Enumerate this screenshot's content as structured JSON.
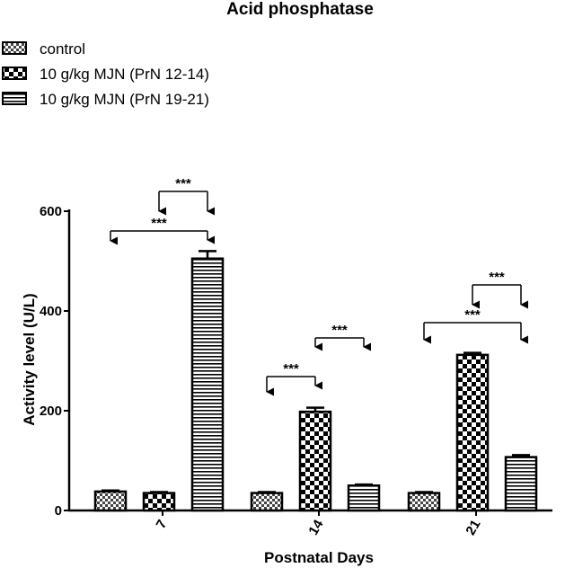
{
  "chart_data": {
    "type": "bar",
    "title": "Acid phosphatase",
    "xlabel": "Postnatal Days",
    "ylabel": "Activity level (U/L)",
    "categories": [
      "7",
      "14",
      "21"
    ],
    "ylim": [
      0,
      600
    ],
    "yticks": [
      0,
      200,
      400,
      600
    ],
    "legend_position": "top-left",
    "series": [
      {
        "name": "control",
        "pattern": "small-checker",
        "values": [
          38,
          35,
          35
        ],
        "errors": [
          2,
          2,
          2
        ]
      },
      {
        "name": "10 g/kg MJN (PrN 12-14)",
        "pattern": "large-checker",
        "values": [
          35,
          198,
          312
        ],
        "errors": [
          2,
          8,
          4
        ]
      },
      {
        "name": "10 g/kg MJN (PrN 19-21)",
        "pattern": "horizontal-stripes",
        "values": [
          505,
          50,
          107
        ],
        "errors": [
          15,
          2,
          4
        ]
      }
    ],
    "significance": [
      {
        "group": 0,
        "from_series": 0,
        "to_series": 2,
        "label": "***"
      },
      {
        "group": 0,
        "from_series": 1,
        "to_series": 2,
        "label": "***"
      },
      {
        "group": 1,
        "from_series": 0,
        "to_series": 1,
        "label": "***"
      },
      {
        "group": 1,
        "from_series": 1,
        "to_series": 2,
        "label": "***"
      },
      {
        "group": 2,
        "from_series": 0,
        "to_series": 2,
        "label": "***"
      },
      {
        "group": 2,
        "from_series": 1,
        "to_series": 2,
        "label": "***"
      }
    ]
  }
}
